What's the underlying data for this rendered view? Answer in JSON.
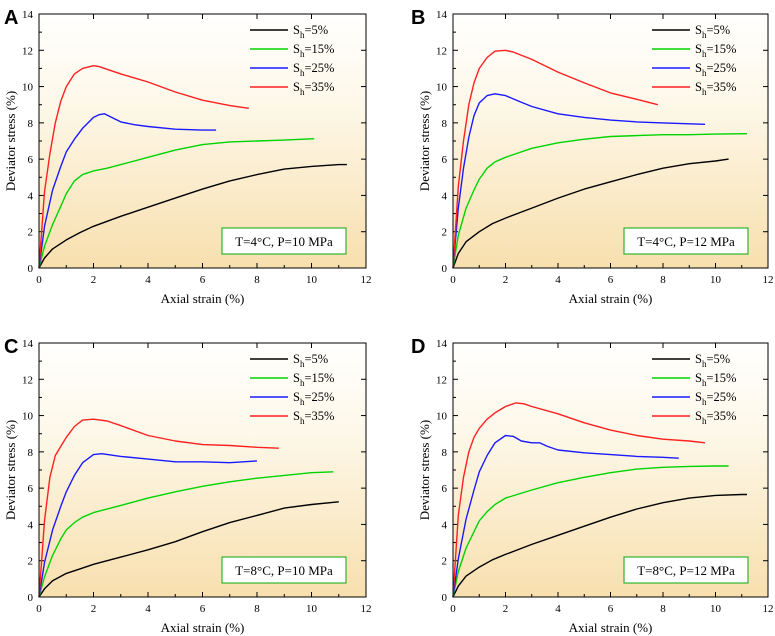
{
  "chart_data": [
    {
      "type": "line",
      "panel": "A",
      "condition": "T=4°C, P=10 MPa",
      "xlabel": "Axial strain (%)",
      "ylabel": "Deviator stress (%)",
      "xlim": [
        0,
        12
      ],
      "ylim": [
        0,
        14
      ],
      "xticks": [
        "0",
        "2",
        "4",
        "6",
        "8",
        "10",
        "12"
      ],
      "yticks": [
        "0",
        "2",
        "4",
        "6",
        "8",
        "10",
        "12",
        "14"
      ],
      "series": [
        {
          "name": "Sh=5%",
          "sub_label": "h",
          "legend_main": "S",
          "legend_rest": "=5%",
          "color": "#000000",
          "x": [
            0,
            0.2,
            0.5,
            1,
            1.5,
            2,
            3,
            4,
            5,
            6,
            7,
            8,
            9,
            10,
            11,
            11.3
          ],
          "y": [
            0,
            0.55,
            1.05,
            1.55,
            1.95,
            2.3,
            2.85,
            3.35,
            3.85,
            4.35,
            4.8,
            5.15,
            5.45,
            5.6,
            5.7,
            5.7
          ]
        },
        {
          "name": "Sh=15%",
          "sub_label": "h",
          "legend_main": "S",
          "legend_rest": "=15%",
          "color": "#00d400",
          "x": [
            0,
            0.2,
            0.5,
            0.8,
            1,
            1.3,
            1.6,
            2,
            2.5,
            3,
            4,
            5,
            6,
            7,
            8,
            9,
            10,
            10.1
          ],
          "y": [
            0,
            1.2,
            2.4,
            3.4,
            4.1,
            4.8,
            5.15,
            5.35,
            5.5,
            5.7,
            6.1,
            6.5,
            6.8,
            6.95,
            7.0,
            7.05,
            7.12,
            7.12
          ]
        },
        {
          "name": "Sh=25%",
          "sub_label": "h",
          "legend_main": "S",
          "legend_rest": "=25%",
          "color": "#1a1aff",
          "x": [
            0,
            0.2,
            0.5,
            0.8,
            1,
            1.3,
            1.6,
            2,
            2.2,
            2.4,
            2.6,
            3,
            3.5,
            4,
            5,
            6,
            6.5
          ],
          "y": [
            0,
            2.3,
            4.3,
            5.6,
            6.4,
            7.1,
            7.7,
            8.3,
            8.45,
            8.5,
            8.35,
            8.05,
            7.9,
            7.8,
            7.65,
            7.6,
            7.6
          ]
        },
        {
          "name": "Sh=35%",
          "sub_label": "h",
          "legend_main": "S",
          "legend_rest": "=35%",
          "color": "#ff2020",
          "x": [
            0,
            0.2,
            0.4,
            0.6,
            0.8,
            1,
            1.3,
            1.6,
            2,
            2.2,
            2.5,
            3,
            4,
            5,
            6,
            7,
            7.7
          ],
          "y": [
            0,
            4.2,
            6.3,
            8.0,
            9.2,
            10.0,
            10.7,
            11.0,
            11.15,
            11.1,
            10.95,
            10.7,
            10.25,
            9.7,
            9.25,
            8.95,
            8.8
          ]
        }
      ]
    },
    {
      "type": "line",
      "panel": "B",
      "condition": "T=4°C, P=12 MPa",
      "xlabel": "Axial strain (%)",
      "ylabel": "Deviator stress (%)",
      "xlim": [
        0,
        12
      ],
      "ylim": [
        0,
        14
      ],
      "xticks": [
        "0",
        "2",
        "4",
        "6",
        "8",
        "10",
        "12"
      ],
      "yticks": [
        "0",
        "2",
        "4",
        "6",
        "8",
        "10",
        "12",
        "14"
      ],
      "series": [
        {
          "name": "Sh=5%",
          "sub_label": "h",
          "legend_main": "S",
          "legend_rest": "=5%",
          "color": "#000000",
          "x": [
            0,
            0.2,
            0.5,
            1,
            1.5,
            2,
            3,
            4,
            5,
            6,
            7,
            8,
            9,
            10,
            10.5
          ],
          "y": [
            0,
            0.8,
            1.45,
            2.0,
            2.45,
            2.75,
            3.3,
            3.85,
            4.35,
            4.75,
            5.15,
            5.5,
            5.75,
            5.9,
            6.0
          ]
        },
        {
          "name": "Sh=15%",
          "sub_label": "h",
          "legend_main": "S",
          "legend_rest": "=15%",
          "color": "#00d400",
          "x": [
            0,
            0.2,
            0.5,
            0.8,
            1,
            1.3,
            1.6,
            2,
            3,
            4,
            5,
            6,
            7,
            8,
            9,
            10,
            11.2
          ],
          "y": [
            0,
            1.8,
            3.3,
            4.3,
            4.9,
            5.5,
            5.85,
            6.1,
            6.6,
            6.9,
            7.1,
            7.25,
            7.3,
            7.35,
            7.35,
            7.38,
            7.4
          ]
        },
        {
          "name": "Sh=25%",
          "sub_label": "h",
          "legend_main": "S",
          "legend_rest": "=25%",
          "color": "#1a1aff",
          "x": [
            0,
            0.2,
            0.4,
            0.6,
            0.8,
            1,
            1.3,
            1.6,
            2,
            2.5,
            3,
            4,
            5,
            6,
            7,
            8,
            9,
            9.6
          ],
          "y": [
            0,
            3.3,
            5.5,
            7.2,
            8.4,
            9.1,
            9.5,
            9.6,
            9.5,
            9.2,
            8.9,
            8.5,
            8.3,
            8.15,
            8.05,
            8.0,
            7.95,
            7.92
          ]
        },
        {
          "name": "Sh=35%",
          "sub_label": "h",
          "legend_main": "S",
          "legend_rest": "=35%",
          "color": "#ff2020",
          "x": [
            0,
            0.2,
            0.4,
            0.6,
            0.8,
            1,
            1.3,
            1.6,
            2,
            2.3,
            3,
            4,
            5,
            6,
            7,
            7.8
          ],
          "y": [
            0,
            4.5,
            7.0,
            9.0,
            10.2,
            11.0,
            11.6,
            11.95,
            12.0,
            11.9,
            11.5,
            10.8,
            10.2,
            9.65,
            9.3,
            9.0
          ]
        }
      ]
    },
    {
      "type": "line",
      "panel": "C",
      "condition": "T=8°C, P=10 MPa",
      "xlabel": "Axial strain (%)",
      "ylabel": "Deviator stress (%)",
      "xlim": [
        0,
        12
      ],
      "ylim": [
        0,
        14
      ],
      "xticks": [
        "0",
        "2",
        "4",
        "6",
        "8",
        "10",
        "12"
      ],
      "yticks": [
        "0",
        "2",
        "4",
        "6",
        "8",
        "10",
        "12",
        "14"
      ],
      "series": [
        {
          "name": "Sh=5%",
          "sub_label": "h",
          "legend_main": "S",
          "legend_rest": "=5%",
          "color": "#000000",
          "x": [
            0,
            0.2,
            0.5,
            1,
            1.5,
            2,
            3,
            4,
            5,
            6,
            7,
            8,
            9,
            10,
            11
          ],
          "y": [
            0,
            0.45,
            0.9,
            1.3,
            1.55,
            1.8,
            2.2,
            2.6,
            3.05,
            3.6,
            4.1,
            4.5,
            4.9,
            5.1,
            5.25
          ]
        },
        {
          "name": "Sh=15%",
          "sub_label": "h",
          "legend_main": "S",
          "legend_rest": "=15%",
          "color": "#00d400",
          "x": [
            0,
            0.2,
            0.5,
            0.8,
            1,
            1.3,
            1.6,
            2,
            3,
            4,
            5,
            6,
            7,
            8,
            9,
            10,
            10.8
          ],
          "y": [
            0,
            1.1,
            2.3,
            3.2,
            3.7,
            4.1,
            4.4,
            4.65,
            5.05,
            5.45,
            5.8,
            6.1,
            6.35,
            6.55,
            6.7,
            6.85,
            6.9
          ]
        },
        {
          "name": "Sh=25%",
          "sub_label": "h",
          "legend_main": "S",
          "legend_rest": "=25%",
          "color": "#1a1aff",
          "x": [
            0,
            0.2,
            0.5,
            0.8,
            1,
            1.3,
            1.6,
            2,
            2.3,
            3,
            4,
            5,
            6,
            7,
            8
          ],
          "y": [
            0,
            1.9,
            3.7,
            5.0,
            5.8,
            6.7,
            7.4,
            7.85,
            7.9,
            7.75,
            7.6,
            7.45,
            7.45,
            7.4,
            7.5
          ]
        },
        {
          "name": "Sh=35%",
          "sub_label": "h",
          "legend_main": "S",
          "legend_rest": "=35%",
          "color": "#ff2020",
          "x": [
            0,
            0.2,
            0.4,
            0.6,
            0.8,
            1,
            1.3,
            1.6,
            2,
            2.5,
            3,
            4,
            5,
            6,
            7,
            8,
            8.8
          ],
          "y": [
            0,
            4.2,
            6.6,
            7.8,
            8.3,
            8.8,
            9.4,
            9.75,
            9.8,
            9.7,
            9.45,
            8.9,
            8.6,
            8.4,
            8.35,
            8.25,
            8.2
          ]
        }
      ]
    },
    {
      "type": "line",
      "panel": "D",
      "condition": "T=8°C, P=12 MPa",
      "xlabel": "Axial strain (%)",
      "ylabel": "Deviator stress (%)",
      "xlim": [
        0,
        12
      ],
      "ylim": [
        0,
        14
      ],
      "xticks": [
        "0",
        "2",
        "4",
        "6",
        "8",
        "10",
        "12"
      ],
      "yticks": [
        "0",
        "2",
        "4",
        "6",
        "8",
        "10",
        "12",
        "14"
      ],
      "series": [
        {
          "name": "Sh=5%",
          "sub_label": "h",
          "legend_main": "S",
          "legend_rest": "=5%",
          "color": "#000000",
          "x": [
            0,
            0.2,
            0.5,
            1,
            1.5,
            2,
            3,
            4,
            5,
            6,
            7,
            8,
            9,
            10,
            11,
            11.2
          ],
          "y": [
            0,
            0.6,
            1.15,
            1.65,
            2.05,
            2.35,
            2.9,
            3.4,
            3.9,
            4.4,
            4.85,
            5.2,
            5.45,
            5.6,
            5.65,
            5.65
          ]
        },
        {
          "name": "Sh=15%",
          "sub_label": "h",
          "legend_main": "S",
          "legend_rest": "=15%",
          "color": "#00d400",
          "x": [
            0,
            0.2,
            0.5,
            0.8,
            1,
            1.3,
            1.6,
            2,
            3,
            4,
            5,
            6,
            7,
            8,
            9,
            10,
            10.5
          ],
          "y": [
            0,
            1.4,
            2.7,
            3.6,
            4.2,
            4.7,
            5.1,
            5.45,
            5.9,
            6.3,
            6.6,
            6.85,
            7.05,
            7.15,
            7.2,
            7.22,
            7.22
          ]
        },
        {
          "name": "Sh=25%",
          "sub_label": "h",
          "legend_main": "S",
          "legend_rest": "=25%",
          "color": "#1a1aff",
          "x": [
            0,
            0.2,
            0.5,
            0.8,
            1,
            1.3,
            1.6,
            2,
            2.3,
            2.6,
            3,
            3.3,
            3.6,
            4,
            5,
            6,
            7,
            8,
            8.6
          ],
          "y": [
            0,
            2.1,
            4.3,
            5.9,
            6.9,
            7.8,
            8.5,
            8.9,
            8.85,
            8.6,
            8.5,
            8.5,
            8.3,
            8.1,
            7.95,
            7.85,
            7.75,
            7.7,
            7.65
          ]
        },
        {
          "name": "Sh=35%",
          "sub_label": "h",
          "legend_main": "S",
          "legend_rest": "=35%",
          "color": "#ff2020",
          "x": [
            0,
            0.2,
            0.4,
            0.6,
            0.8,
            1,
            1.3,
            1.6,
            2,
            2.4,
            2.7,
            3,
            4,
            5,
            6,
            7,
            8,
            9,
            9.6
          ],
          "y": [
            0,
            4.5,
            6.6,
            8.0,
            8.8,
            9.3,
            9.8,
            10.15,
            10.5,
            10.7,
            10.65,
            10.5,
            10.1,
            9.6,
            9.2,
            8.9,
            8.7,
            8.6,
            8.5
          ]
        }
      ]
    }
  ]
}
